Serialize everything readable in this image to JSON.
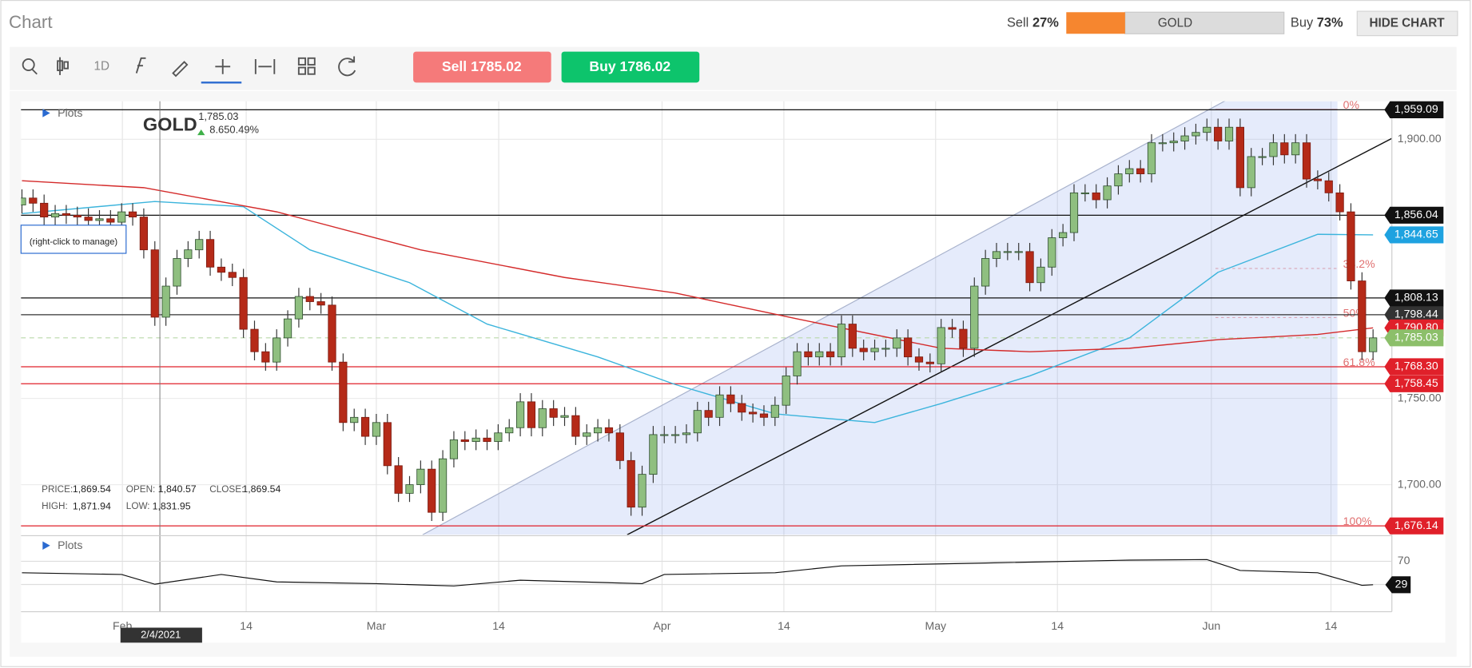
{
  "header": {
    "title": "Chart",
    "sell_label": "Sell",
    "sell": {
      "value": 27,
      "label": "27%"
    },
    "instrument": "GOLD",
    "buy_label": "Buy",
    "buy": {
      "value": 73,
      "label": "73%"
    },
    "hide_button": "HIDE CHART"
  },
  "toolbar": {
    "interval": "1D",
    "sell_button": "Sell 1785.02",
    "buy_button": "Buy 1786.02"
  },
  "chart_data": [
    {
      "type": "candlestick",
      "title": "GOLD",
      "price": "1,785.03",
      "change": "8.650.49%",
      "plots_label": "Plots",
      "hint": "(right-click to manage)",
      "crosshair_date": "2/4/2021",
      "info": [
        {
          "label": "PRICE:",
          "value": "1,869.54"
        },
        {
          "label": "OPEN:",
          "value": "1,840.57"
        },
        {
          "label": "CLOSE:",
          "value": "1,869.54"
        },
        {
          "label": "HIGH:",
          "value": "1,871.94"
        },
        {
          "label": "LOW:",
          "value": "1,831.95"
        }
      ],
      "xlim": [
        0,
        123.7
      ],
      "ylim": [
        1671,
        1922
      ],
      "xticks": [
        {
          "value": 9.07,
          "label": "Feb"
        },
        {
          "value": 20.25,
          "label": "14"
        },
        {
          "value": 32.0,
          "label": "Mar"
        },
        {
          "value": 43.05,
          "label": "14"
        },
        {
          "value": 57.8,
          "label": "Apr"
        },
        {
          "value": 68.8,
          "label": "14"
        },
        {
          "value": 82.5,
          "label": "May"
        },
        {
          "value": 93.5,
          "label": "14"
        },
        {
          "value": 107.4,
          "label": "Jun"
        },
        {
          "value": 118.2,
          "label": "14"
        }
      ],
      "yticks": [
        {
          "value": 1900,
          "label": "1,900.00"
        },
        {
          "value": 1750,
          "label": "1,750.00"
        },
        {
          "value": 1700,
          "label": "1,700.00"
        }
      ],
      "up_color": "#8fbf80",
      "down_color": "#b52a18",
      "open": [
        1862,
        1866,
        1863,
        1855,
        1857,
        1856,
        1855,
        1853,
        1854,
        1852,
        1858,
        1855,
        1836,
        1797,
        1815,
        1831,
        1836,
        1842,
        1826,
        1823,
        1820,
        1790,
        1777,
        1771,
        1785,
        1796,
        1809,
        1806,
        1804,
        1771,
        1736,
        1739,
        1728,
        1736,
        1711,
        1695,
        1700,
        1709,
        1684,
        1715,
        1726,
        1725,
        1727,
        1725,
        1730,
        1733,
        1748,
        1733,
        1744,
        1739,
        1740,
        1728,
        1730,
        1733,
        1730,
        1714,
        1687,
        1706,
        1729,
        1729,
        1729,
        1730,
        1743,
        1739,
        1752,
        1747,
        1742,
        1741,
        1739,
        1746,
        1763,
        1777,
        1774,
        1777,
        1774,
        1793,
        1779,
        1777,
        1779,
        1779,
        1785,
        1774,
        1771,
        1770,
        1791,
        1790,
        1779,
        1815,
        1831,
        1835,
        1835,
        1835,
        1817,
        1826,
        1843,
        1846,
        1869,
        1869,
        1865,
        1873,
        1880,
        1883,
        1880,
        1898,
        1898,
        1899,
        1902,
        1904,
        1907,
        1899,
        1907,
        1872,
        1890,
        1890,
        1898,
        1891,
        1898,
        1877,
        1876,
        1869,
        1858,
        1818,
        1777
      ],
      "high": [
        1871,
        1871,
        1868,
        1862,
        1862,
        1861,
        1860,
        1859,
        1859,
        1863,
        1863,
        1860,
        1841,
        1820,
        1836,
        1841,
        1847,
        1847,
        1831,
        1828,
        1825,
        1795,
        1782,
        1790,
        1801,
        1814,
        1814,
        1811,
        1809,
        1776,
        1744,
        1744,
        1741,
        1741,
        1716,
        1705,
        1714,
        1714,
        1720,
        1731,
        1731,
        1732,
        1732,
        1735,
        1738,
        1753,
        1753,
        1749,
        1749,
        1745,
        1745,
        1735,
        1738,
        1738,
        1735,
        1719,
        1711,
        1734,
        1734,
        1734,
        1735,
        1748,
        1748,
        1757,
        1757,
        1752,
        1747,
        1746,
        1751,
        1768,
        1782,
        1782,
        1782,
        1782,
        1798,
        1798,
        1784,
        1784,
        1784,
        1790,
        1790,
        1779,
        1776,
        1796,
        1796,
        1795,
        1820,
        1836,
        1840,
        1840,
        1840,
        1840,
        1831,
        1848,
        1851,
        1874,
        1874,
        1874,
        1878,
        1885,
        1888,
        1888,
        1903,
        1903,
        1904,
        1907,
        1909,
        1912,
        1912,
        1912,
        1912,
        1895,
        1895,
        1903,
        1903,
        1903,
        1903,
        1882,
        1881,
        1874,
        1863,
        1823,
        1790
      ],
      "low": [
        1857,
        1858,
        1850,
        1850,
        1851,
        1850,
        1848,
        1848,
        1847,
        1847,
        1850,
        1831,
        1792,
        1792,
        1810,
        1826,
        1831,
        1821,
        1818,
        1815,
        1785,
        1772,
        1766,
        1766,
        1780,
        1791,
        1801,
        1799,
        1766,
        1731,
        1731,
        1723,
        1723,
        1706,
        1690,
        1690,
        1695,
        1679,
        1679,
        1710,
        1720,
        1720,
        1720,
        1720,
        1725,
        1728,
        1728,
        1728,
        1734,
        1734,
        1723,
        1723,
        1725,
        1725,
        1709,
        1682,
        1682,
        1701,
        1724,
        1724,
        1724,
        1725,
        1734,
        1734,
        1742,
        1737,
        1736,
        1734,
        1734,
        1741,
        1758,
        1769,
        1769,
        1769,
        1769,
        1774,
        1772,
        1772,
        1774,
        1774,
        1769,
        1766,
        1765,
        1765,
        1785,
        1774,
        1774,
        1810,
        1826,
        1830,
        1830,
        1812,
        1812,
        1821,
        1838,
        1841,
        1864,
        1860,
        1860,
        1868,
        1875,
        1875,
        1875,
        1893,
        1893,
        1894,
        1897,
        1899,
        1894,
        1894,
        1867,
        1867,
        1885,
        1885,
        1886,
        1886,
        1872,
        1871,
        1864,
        1853,
        1813,
        1772,
        1772
      ],
      "close": [
        1866,
        1863,
        1855,
        1857,
        1856,
        1855,
        1853,
        1854,
        1852,
        1858,
        1855,
        1836,
        1797,
        1815,
        1831,
        1836,
        1842,
        1826,
        1823,
        1820,
        1790,
        1777,
        1771,
        1785,
        1796,
        1809,
        1806,
        1804,
        1771,
        1736,
        1739,
        1728,
        1736,
        1711,
        1695,
        1700,
        1709,
        1684,
        1715,
        1726,
        1725,
        1727,
        1725,
        1730,
        1733,
        1748,
        1733,
        1744,
        1739,
        1740,
        1728,
        1730,
        1733,
        1730,
        1714,
        1687,
        1706,
        1729,
        1729,
        1729,
        1730,
        1743,
        1739,
        1752,
        1747,
        1742,
        1741,
        1739,
        1746,
        1763,
        1777,
        1774,
        1777,
        1774,
        1793,
        1779,
        1777,
        1779,
        1779,
        1785,
        1774,
        1771,
        1770,
        1791,
        1790,
        1779,
        1815,
        1831,
        1835,
        1835,
        1835,
        1817,
        1826,
        1843,
        1846,
        1869,
        1869,
        1865,
        1873,
        1880,
        1883,
        1880,
        1898,
        1898,
        1899,
        1902,
        1904,
        1907,
        1899,
        1907,
        1872,
        1890,
        1890,
        1898,
        1891,
        1898,
        1877,
        1876,
        1869,
        1858,
        1818,
        1777,
        1785.03
      ],
      "series": [
        {
          "color": "#3bb4dc",
          "x": [
            0,
            12,
            20,
            26,
            35,
            42,
            52,
            59,
            68,
            77,
            83,
            91,
            100,
            108,
            117,
            122
          ],
          "values": [
            1857,
            1864,
            1861,
            1836,
            1817,
            1793,
            1774,
            1758,
            1741,
            1736,
            1747,
            1763,
            1785,
            1823,
            1845,
            1844.65
          ]
        },
        {
          "color": "#d42a2a",
          "x": [
            0,
            11,
            23,
            36,
            49,
            59,
            70,
            83,
            91,
            100,
            108,
            117,
            122
          ],
          "values": [
            1876,
            1872,
            1858,
            1836,
            1820,
            1811,
            1796,
            1779,
            1777,
            1779,
            1784,
            1787,
            1790.8
          ]
        }
      ],
      "levels": [
        {
          "value": 1959.09,
          "label": "1,959.09",
          "color": "#111111",
          "line": "solid"
        },
        {
          "value": 1856.04,
          "label": "1,856.04",
          "color": "#111111",
          "line": "solid"
        },
        {
          "value": 1844.65,
          "label": "1,844.65",
          "color": "#1ea2e0",
          "line": "none"
        },
        {
          "value": 1808.13,
          "label": "1,808.13",
          "color": "#111111",
          "line": "solid"
        },
        {
          "value": 1798.44,
          "label": "1,798.44",
          "color": "#333333",
          "line": "solid"
        },
        {
          "value": 1790.8,
          "label": "1,790.80",
          "color": "#e0202a",
          "line": "none"
        },
        {
          "value": 1785.03,
          "label": "1,785.03",
          "color": "#8cbf6a",
          "line": "dashed"
        },
        {
          "value": 1768.3,
          "label": "1,768.30",
          "color": "#e0202a",
          "line": "solid"
        },
        {
          "value": 1758.45,
          "label": "1,758.45",
          "color": "#e0202a",
          "line": "solid"
        },
        {
          "value": 1676.14,
          "label": "1,676.14",
          "color": "#e0202a",
          "line": "solid"
        }
      ],
      "fib": [
        {
          "value": 1917.4,
          "label": "0%"
        },
        {
          "value": 1825.2,
          "label": "38.2%"
        },
        {
          "value": 1796.8,
          "label": "50%"
        },
        {
          "value": 1768.3,
          "label": "61.8%"
        },
        {
          "value": 1676.14,
          "label": "100%"
        }
      ]
    },
    {
      "type": "line",
      "plots_label": "Plots",
      "color": "#111111",
      "ylim": [
        -18,
        113
      ],
      "yticks": [
        70
      ],
      "x": [
        0,
        9,
        12,
        18,
        23,
        32,
        39,
        45,
        56,
        58,
        68,
        74,
        87,
        100,
        107,
        110,
        117,
        121,
        122
      ],
      "values": [
        50,
        47,
        30,
        47,
        34,
        31,
        27,
        37,
        31,
        47,
        50,
        62,
        67,
        72,
        73,
        54,
        50,
        28,
        29
      ]
    }
  ]
}
